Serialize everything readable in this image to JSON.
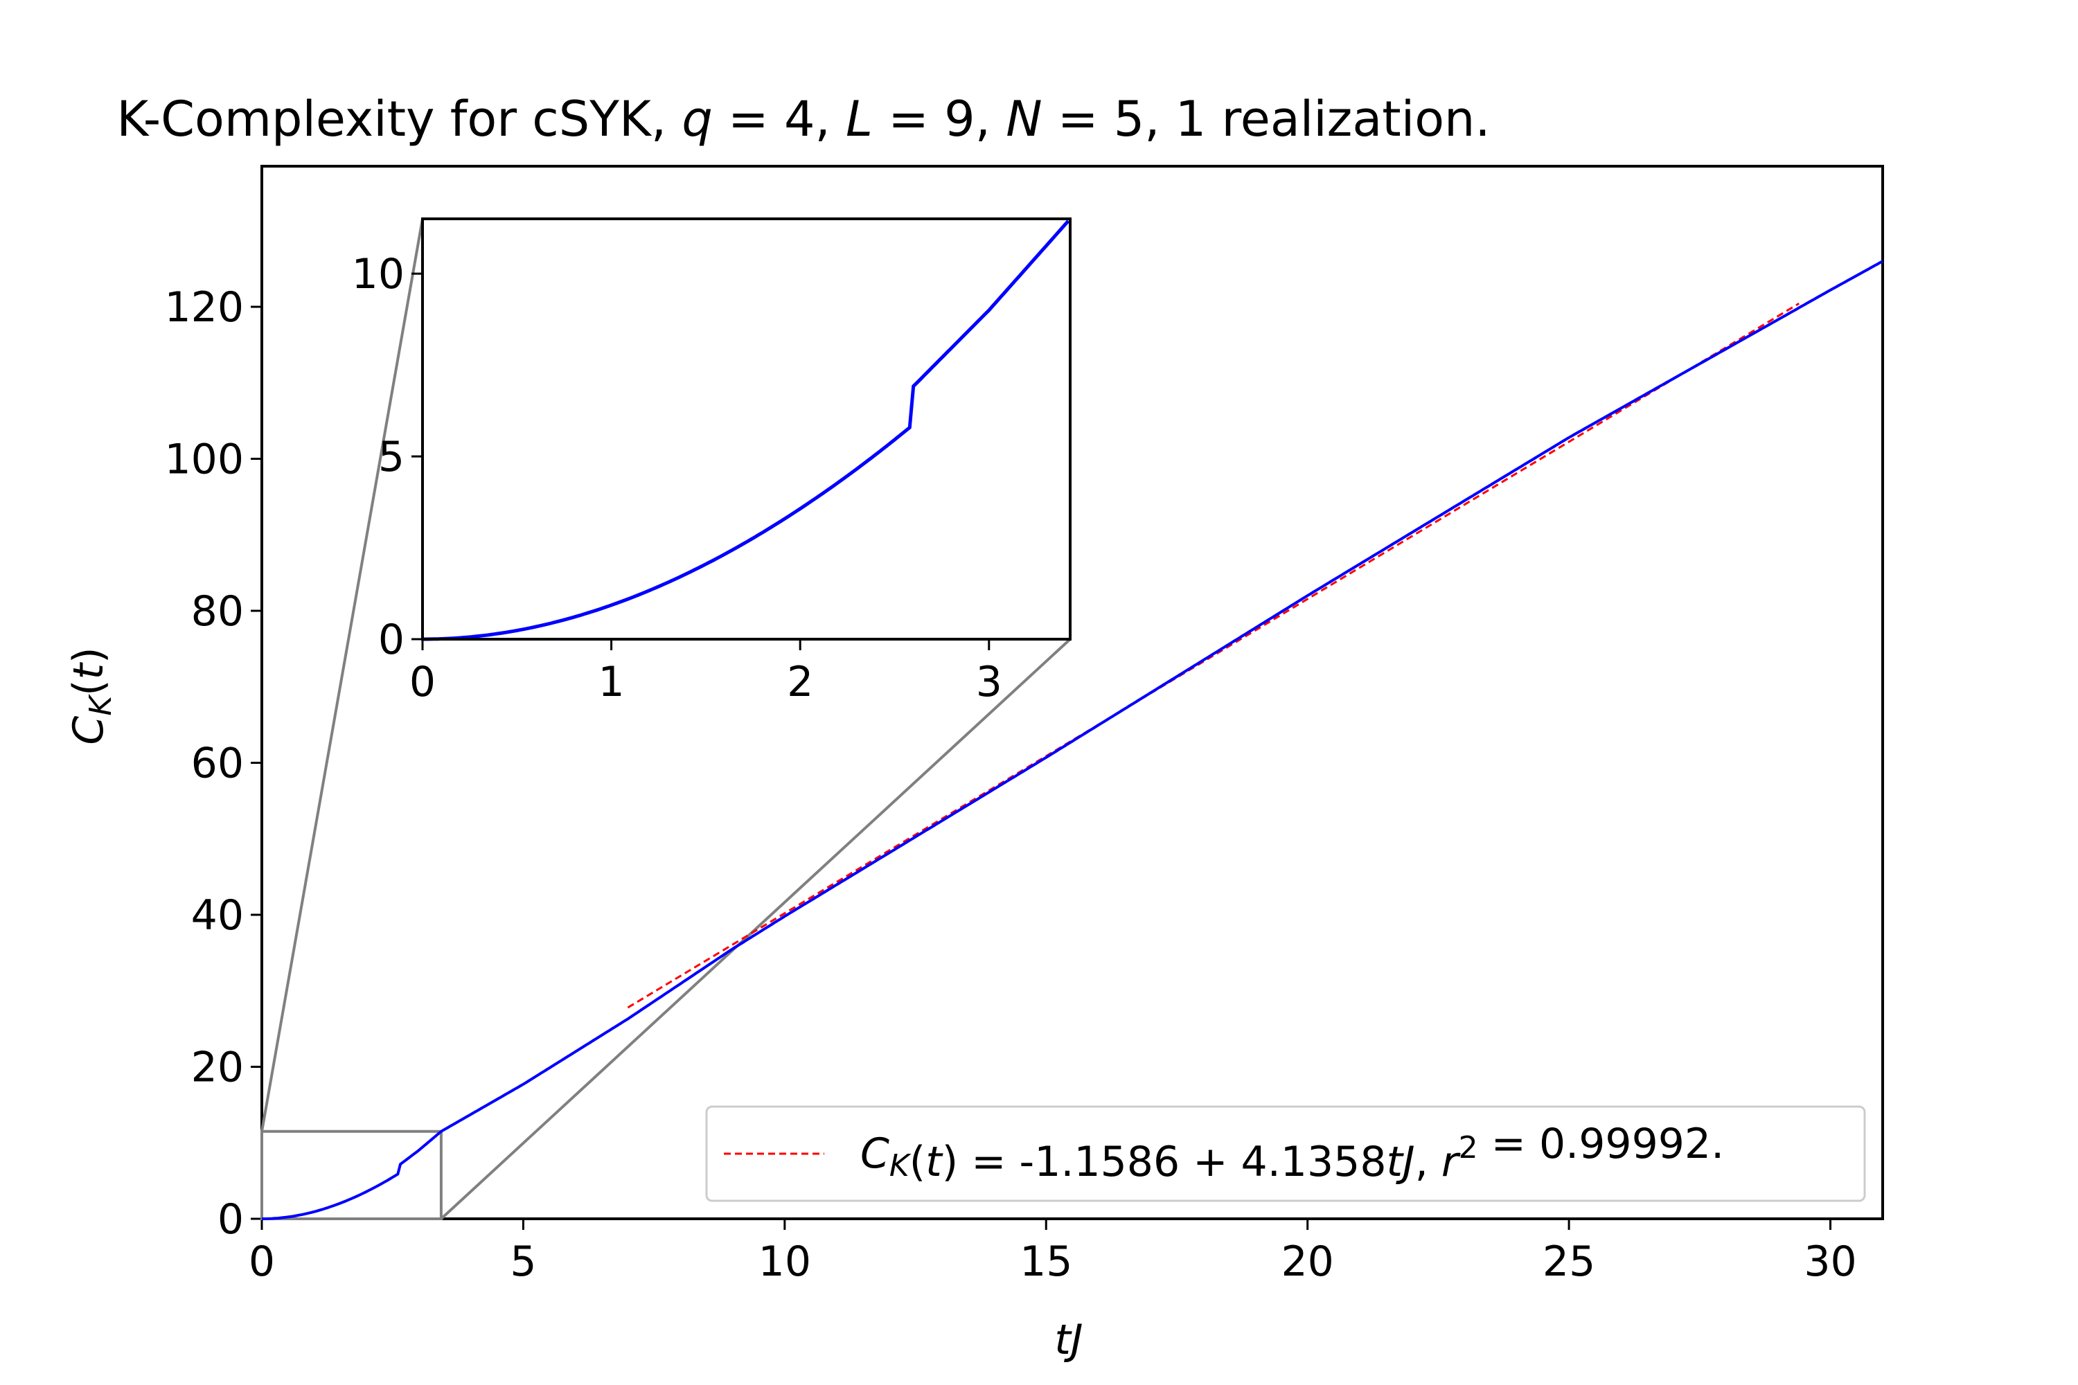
{
  "chart_data": {
    "type": "line",
    "title": "K-Complexity for cSYK, q = 4, L = 9, N = 5, 1 realization.",
    "xlabel": "tJ",
    "ylabel": "C_K(t)",
    "xlim": [
      0,
      31
    ],
    "ylim": [
      0,
      138.5
    ],
    "x_ticks": [
      "0",
      "5",
      "10",
      "15",
      "20",
      "25",
      "30"
    ],
    "y_ticks": [
      "0",
      "20",
      "40",
      "60",
      "80",
      "100",
      "120"
    ],
    "grid": false,
    "legend_position": "lower-right",
    "series": [
      {
        "name": "",
        "color": "#0000ff",
        "style": "solid",
        "kind": "ballistic K-complexity (early quadratic, then linear)",
        "x_end": 31,
        "y_end": 126,
        "points": [
          [
            0,
            0
          ],
          [
            0.5,
            0.23
          ],
          [
            1,
            0.95
          ],
          [
            1.5,
            2.3
          ],
          [
            2,
            4.2
          ],
          [
            2.5,
            6.4
          ],
          [
            3,
            9.0
          ],
          [
            3.43,
            11.5
          ],
          [
            5,
            17.7
          ],
          [
            7,
            26.3
          ],
          [
            9,
            35.5
          ],
          [
            10,
            39.8
          ],
          [
            15,
            60.7
          ],
          [
            20,
            82.0
          ],
          [
            25,
            102.8
          ],
          [
            30,
            122.2
          ],
          [
            31,
            126.0
          ]
        ]
      },
      {
        "name": "C_K(t) = -1.1586 + 4.1358tJ, r^2 = 0.99992.",
        "color": "#ff0000",
        "style": "dashed",
        "kind": "linear fit",
        "intercept": -1.1586,
        "slope": 4.1358,
        "x_range": [
          7,
          29.4
        ]
      }
    ],
    "inset": {
      "xlim": [
        0,
        3.43
      ],
      "ylim": [
        0,
        11.5
      ],
      "x_ticks": [
        "0",
        "1",
        "2",
        "3"
      ],
      "y_ticks": [
        "0",
        "5",
        "10"
      ]
    },
    "legend": {
      "entries": [
        {
          "series": 1,
          "parts": [
            {
              "t": "C",
              "i": true
            },
            {
              "t": "K",
              "i": true,
              "sub": true
            },
            {
              "t": "(",
              "i": false
            },
            {
              "t": "t",
              "i": true
            },
            {
              "t": ") = -1.1586 + 4.1358",
              "i": false
            },
            {
              "t": "tJ",
              "i": true
            },
            {
              "t": ", ",
              "i": false
            },
            {
              "t": "r",
              "i": true
            },
            {
              "t": "2",
              "i": false,
              "sup": true
            },
            {
              "t": " = 0.99992.",
              "i": false
            }
          ]
        }
      ]
    },
    "colors": {
      "main_line": "#0000ff",
      "fit_line": "#ff0000",
      "zoom_indicator": "#808080",
      "axes": "#000000"
    }
  }
}
